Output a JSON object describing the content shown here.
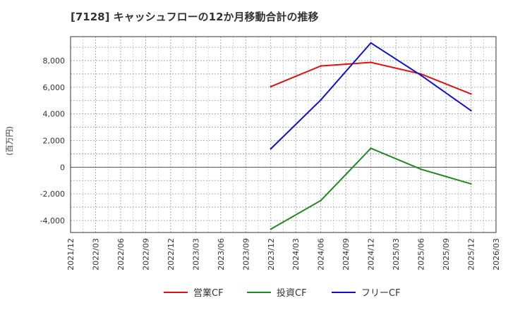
{
  "chart_data": {
    "type": "line",
    "title": "[7128]  キャッシュフローの12か月移動合計の推移",
    "ylabel": "(百万円)",
    "xlabel": "",
    "x_ticks": [
      "2021/12",
      "2022/03",
      "2022/06",
      "2022/09",
      "2022/12",
      "2023/03",
      "2023/06",
      "2023/09",
      "2023/12",
      "2024/03",
      "2024/06",
      "2024/09",
      "2024/12",
      "2025/03",
      "2025/06",
      "2025/09",
      "2025/12",
      "2026/03"
    ],
    "y_ticks": [
      -4000,
      -2000,
      0,
      2000,
      4000,
      6000,
      8000
    ],
    "y_tick_labels": [
      "-4,000",
      "-2,000",
      "0",
      "2,000",
      "4,000",
      "6,000",
      "8,000"
    ],
    "ylim": [
      -4900,
      9800
    ],
    "grid": true,
    "legend_position": "bottom",
    "series": [
      {
        "name": "営業CF",
        "color": "#dd1111",
        "points": [
          {
            "x": "2023/12",
            "y": 6050
          },
          {
            "x": "2024/06",
            "y": 7600
          },
          {
            "x": "2024/12",
            "y": 7870
          },
          {
            "x": "2025/06",
            "y": 7000
          },
          {
            "x": "2025/12",
            "y": 5500
          }
        ]
      },
      {
        "name": "投資CF",
        "color": "#228822",
        "points": [
          {
            "x": "2023/12",
            "y": -4650
          },
          {
            "x": "2024/06",
            "y": -2500
          },
          {
            "x": "2024/12",
            "y": 1420
          },
          {
            "x": "2025/06",
            "y": -150
          },
          {
            "x": "2025/12",
            "y": -1250
          }
        ]
      },
      {
        "name": "フリーCF",
        "color": "#1111cc",
        "points": [
          {
            "x": "2023/12",
            "y": 1380
          },
          {
            "x": "2024/06",
            "y": 5050
          },
          {
            "x": "2024/12",
            "y": 9330
          },
          {
            "x": "2025/06",
            "y": 6900
          },
          {
            "x": "2025/12",
            "y": 4250
          }
        ]
      }
    ]
  }
}
